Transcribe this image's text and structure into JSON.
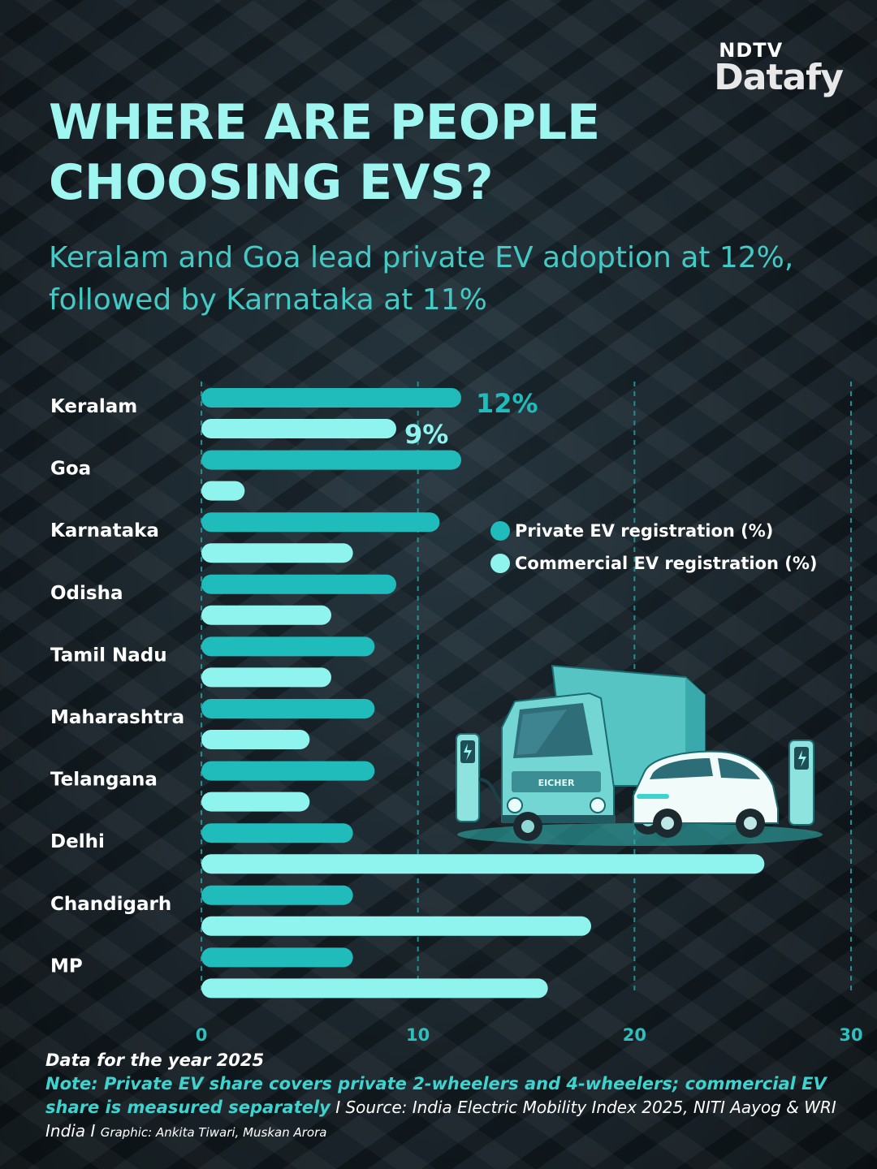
{
  "brand": {
    "ndtv": "NDTV",
    "datafy": "Datafy"
  },
  "title": "WHERE ARE PEOPLE CHOOSING EVS?",
  "subtitle": "Keralam and Goa lead private EV adoption at 12%, followed by Karnataka at 11%",
  "colors": {
    "private": "#20bcbc",
    "commercial": "#8ff3ee",
    "grid": "#1f8f93",
    "title": "#9ff5f0"
  },
  "legend": {
    "private": "Private EV registration (%)",
    "commercial": "Commercial EV registration (%)"
  },
  "chart_data": {
    "type": "bar",
    "orientation": "horizontal",
    "categories": [
      "Keralam",
      "Goa",
      "Karnataka",
      "Odisha",
      "Tamil Nadu",
      "Maharashtra",
      "Telangana",
      "Delhi",
      "Chandigarh",
      "MP"
    ],
    "series": [
      {
        "name": "Private EV registration (%)",
        "values": [
          12,
          12,
          11,
          9,
          8,
          8,
          8,
          7,
          7,
          7
        ]
      },
      {
        "name": "Commercial EV registration (%)",
        "values": [
          9,
          2,
          7,
          6,
          6,
          5,
          5,
          26,
          18,
          16
        ]
      }
    ],
    "data_labels": [
      {
        "category": "Keralam",
        "series": 0,
        "text": "12%"
      },
      {
        "category": "Keralam",
        "series": 1,
        "text": "9%"
      }
    ],
    "xlim": [
      0,
      30
    ],
    "xticks": [
      "0",
      "10",
      "20",
      "30"
    ],
    "grid": true,
    "legend_position": "right"
  },
  "footer": {
    "year_note": "Data for the year 2025",
    "note": "Note: Private EV share covers private 2-wheelers and 4-wheelers; commercial EV share is measured separately",
    "source": " I Source: India Electric Mobility Index 2025, NITI Aayog & WRI India I ",
    "graphic": "Graphic: Ankita Tiwari, Muskan Arora"
  },
  "illustration": {
    "truck_text": "EICHER"
  }
}
